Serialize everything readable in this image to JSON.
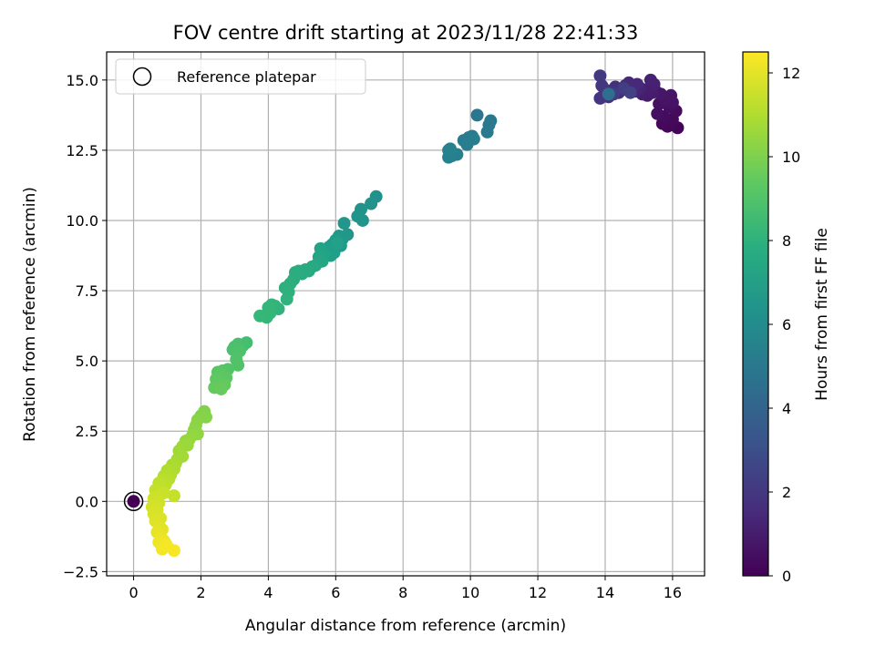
{
  "chart_data": {
    "type": "scatter",
    "title": "FOV centre drift starting at 2023/11/28 22:41:33",
    "xlabel": "Angular distance from reference (arcmin)",
    "ylabel": "Rotation from reference (arcmin)",
    "xlim": [
      -0.8,
      16.95
    ],
    "ylim": [
      -2.65,
      16.0
    ],
    "xticks": [
      0,
      2,
      4,
      6,
      8,
      10,
      12,
      14,
      16
    ],
    "yticks": [
      -2.5,
      0.0,
      2.5,
      5.0,
      7.5,
      10.0,
      12.5,
      15.0
    ],
    "xtick_labels": [
      "0",
      "2",
      "4",
      "6",
      "8",
      "10",
      "12",
      "14",
      "16"
    ],
    "ytick_labels": [
      "−2.5",
      "0.0",
      "2.5",
      "5.0",
      "7.5",
      "10.0",
      "12.5",
      "15.0"
    ],
    "grid": true,
    "colormap": "viridis",
    "colorbar": {
      "label": "Hours from first FF file",
      "range": [
        0,
        12.5
      ],
      "ticks": [
        0,
        2,
        4,
        6,
        8,
        10,
        12
      ],
      "tick_labels": [
        "0",
        "2",
        "4",
        "6",
        "8",
        "10",
        "12"
      ]
    },
    "legend": {
      "position": "top-left",
      "entries": [
        {
          "label": "Reference platepar",
          "marker": "open-circle"
        }
      ]
    },
    "reference_point": {
      "x": 0.0,
      "y": 0.0,
      "hours": 0.0
    },
    "series": [
      {
        "color_by": "hours",
        "points": [
          [
            15.95,
            13.4,
            0.1
          ],
          [
            16.15,
            13.3,
            0.15
          ],
          [
            15.85,
            13.35,
            0.2
          ],
          [
            15.7,
            13.45,
            0.25
          ],
          [
            16.0,
            13.6,
            0.3
          ],
          [
            15.75,
            13.7,
            0.35
          ],
          [
            16.1,
            13.9,
            0.4
          ],
          [
            15.55,
            13.8,
            0.45
          ],
          [
            15.9,
            14.05,
            0.5
          ],
          [
            15.6,
            14.15,
            0.55
          ],
          [
            16.0,
            14.2,
            0.6
          ],
          [
            15.8,
            14.3,
            0.65
          ],
          [
            15.95,
            14.45,
            0.7
          ],
          [
            15.65,
            14.5,
            0.75
          ],
          [
            15.5,
            14.6,
            0.8
          ],
          [
            15.25,
            14.45,
            0.9
          ],
          [
            15.4,
            14.55,
            0.95
          ],
          [
            15.1,
            14.5,
            1.0
          ],
          [
            15.3,
            14.7,
            1.05
          ],
          [
            15.45,
            14.85,
            1.1
          ],
          [
            15.35,
            15.0,
            1.15
          ],
          [
            15.05,
            14.7,
            1.2
          ],
          [
            14.9,
            14.6,
            1.3
          ],
          [
            14.8,
            14.75,
            1.35
          ],
          [
            14.7,
            14.9,
            1.4
          ],
          [
            14.95,
            14.85,
            1.45
          ],
          [
            14.6,
            14.8,
            1.5
          ],
          [
            14.5,
            14.65,
            1.55
          ],
          [
            14.4,
            14.55,
            1.6
          ],
          [
            14.3,
            14.75,
            1.7
          ],
          [
            14.2,
            14.6,
            1.75
          ],
          [
            14.1,
            14.4,
            1.8
          ],
          [
            13.95,
            14.45,
            1.85
          ],
          [
            13.85,
            14.35,
            1.9
          ],
          [
            14.0,
            14.65,
            1.95
          ],
          [
            13.9,
            14.8,
            2.0
          ],
          [
            13.85,
            15.15,
            2.1
          ],
          [
            14.25,
            14.5,
            2.2
          ],
          [
            14.55,
            14.7,
            2.3
          ],
          [
            14.75,
            14.55,
            2.4
          ],
          [
            14.1,
            14.5,
            4.5
          ],
          [
            10.2,
            13.75,
            4.9
          ],
          [
            10.6,
            13.55,
            5.0
          ],
          [
            10.55,
            13.4,
            5.05
          ],
          [
            10.5,
            13.15,
            5.1
          ],
          [
            10.05,
            13.0,
            5.15
          ],
          [
            9.95,
            12.95,
            5.2
          ],
          [
            9.8,
            12.85,
            5.25
          ],
          [
            10.1,
            12.9,
            5.3
          ],
          [
            9.9,
            12.7,
            5.35
          ],
          [
            9.6,
            12.35,
            5.4
          ],
          [
            9.45,
            12.3,
            5.45
          ],
          [
            9.35,
            12.25,
            5.5
          ],
          [
            9.35,
            12.5,
            5.55
          ],
          [
            9.4,
            12.55,
            5.6
          ],
          [
            7.2,
            10.85,
            6.3
          ],
          [
            7.05,
            10.6,
            6.35
          ],
          [
            6.75,
            10.4,
            6.4
          ],
          [
            6.65,
            10.15,
            6.45
          ],
          [
            6.8,
            10.0,
            6.5
          ],
          [
            6.25,
            9.9,
            6.55
          ],
          [
            6.35,
            9.5,
            6.6
          ],
          [
            6.2,
            9.35,
            6.65
          ],
          [
            6.1,
            9.45,
            6.7
          ],
          [
            6.0,
            9.3,
            6.75
          ],
          [
            6.15,
            9.1,
            6.8
          ],
          [
            5.9,
            9.15,
            6.85
          ],
          [
            5.8,
            9.05,
            6.9
          ],
          [
            5.7,
            8.95,
            6.95
          ],
          [
            5.95,
            8.85,
            7.0
          ],
          [
            5.85,
            8.75,
            7.05
          ],
          [
            6.05,
            9.2,
            7.1
          ],
          [
            5.65,
            8.8,
            7.15
          ],
          [
            5.55,
            9.0,
            7.2
          ],
          [
            5.5,
            8.7,
            7.3
          ],
          [
            5.6,
            8.55,
            7.35
          ],
          [
            5.4,
            8.4,
            7.45
          ],
          [
            5.3,
            8.35,
            7.5
          ],
          [
            5.2,
            8.2,
            7.55
          ],
          [
            5.1,
            8.25,
            7.6
          ],
          [
            5.0,
            8.1,
            7.65
          ],
          [
            4.9,
            8.2,
            7.7
          ],
          [
            4.8,
            8.15,
            7.75
          ],
          [
            4.75,
            7.9,
            7.8
          ],
          [
            4.65,
            7.75,
            7.85
          ],
          [
            4.5,
            7.6,
            7.9
          ],
          [
            4.6,
            7.45,
            7.95
          ],
          [
            4.55,
            7.2,
            8.0
          ],
          [
            4.3,
            6.85,
            8.05
          ],
          [
            4.2,
            6.95,
            8.1
          ],
          [
            4.1,
            7.0,
            8.15
          ],
          [
            4.0,
            6.9,
            8.2
          ],
          [
            4.05,
            6.7,
            8.25
          ],
          [
            3.95,
            6.55,
            8.3
          ],
          [
            3.75,
            6.6,
            8.35
          ],
          [
            3.35,
            5.65,
            8.7
          ],
          [
            3.25,
            5.55,
            8.75
          ],
          [
            3.1,
            5.6,
            8.8
          ],
          [
            3.0,
            5.5,
            8.85
          ],
          [
            2.95,
            5.4,
            8.9
          ],
          [
            3.15,
            5.35,
            8.95
          ],
          [
            3.05,
            5.05,
            9.0
          ],
          [
            3.1,
            4.85,
            9.05
          ],
          [
            2.8,
            4.7,
            9.1
          ],
          [
            2.65,
            4.65,
            9.15
          ],
          [
            2.5,
            4.6,
            9.2
          ],
          [
            2.6,
            4.5,
            9.25
          ],
          [
            2.75,
            4.4,
            9.3
          ],
          [
            2.45,
            4.35,
            9.35
          ],
          [
            2.55,
            4.2,
            9.4
          ],
          [
            2.7,
            4.15,
            9.45
          ],
          [
            2.4,
            4.05,
            9.5
          ],
          [
            2.6,
            4.0,
            9.55
          ],
          [
            2.1,
            3.2,
            10.1
          ],
          [
            2.0,
            3.05,
            10.15
          ],
          [
            2.15,
            3.0,
            10.2
          ],
          [
            1.9,
            2.9,
            10.25
          ],
          [
            1.85,
            2.7,
            10.3
          ],
          [
            1.8,
            2.55,
            10.35
          ],
          [
            1.9,
            2.4,
            10.4
          ],
          [
            1.75,
            2.35,
            10.45
          ],
          [
            1.65,
            2.2,
            10.5
          ],
          [
            1.55,
            2.15,
            10.55
          ],
          [
            1.6,
            2.0,
            10.6
          ],
          [
            1.45,
            1.95,
            10.65
          ],
          [
            1.35,
            1.8,
            10.7
          ],
          [
            1.45,
            1.6,
            10.75
          ],
          [
            1.3,
            1.5,
            10.8
          ],
          [
            1.25,
            1.35,
            10.85
          ],
          [
            1.15,
            1.3,
            10.9
          ],
          [
            1.2,
            1.15,
            10.95
          ],
          [
            1.0,
            1.1,
            11.0
          ],
          [
            1.1,
            0.95,
            11.05
          ],
          [
            0.9,
            0.9,
            11.1
          ],
          [
            1.05,
            0.8,
            11.15
          ],
          [
            0.85,
            0.75,
            11.2
          ],
          [
            0.95,
            0.6,
            11.25
          ],
          [
            0.75,
            0.65,
            11.3
          ],
          [
            0.8,
            0.45,
            11.35
          ],
          [
            0.65,
            0.4,
            11.4
          ],
          [
            1.2,
            0.2,
            11.45
          ],
          [
            0.9,
            0.3,
            11.5
          ],
          [
            0.7,
            0.15,
            11.55
          ],
          [
            0.6,
            0.1,
            11.6
          ],
          [
            0.75,
            -0.05,
            11.65
          ],
          [
            0.55,
            -0.2,
            11.7
          ],
          [
            0.7,
            -0.3,
            11.75
          ],
          [
            0.6,
            -0.45,
            11.8
          ],
          [
            0.8,
            -0.6,
            11.85
          ],
          [
            0.65,
            -0.7,
            11.9
          ],
          [
            0.75,
            -0.85,
            11.95
          ],
          [
            0.85,
            -1.0,
            12.0
          ],
          [
            0.7,
            -1.1,
            12.05
          ],
          [
            0.8,
            -1.25,
            12.1
          ],
          [
            0.9,
            -1.4,
            12.15
          ],
          [
            0.75,
            -1.45,
            12.2
          ],
          [
            0.95,
            -1.5,
            12.25
          ],
          [
            0.85,
            -1.7,
            12.3
          ],
          [
            1.2,
            -1.75,
            12.4
          ],
          [
            1.0,
            -1.6,
            12.35
          ]
        ]
      }
    ]
  }
}
